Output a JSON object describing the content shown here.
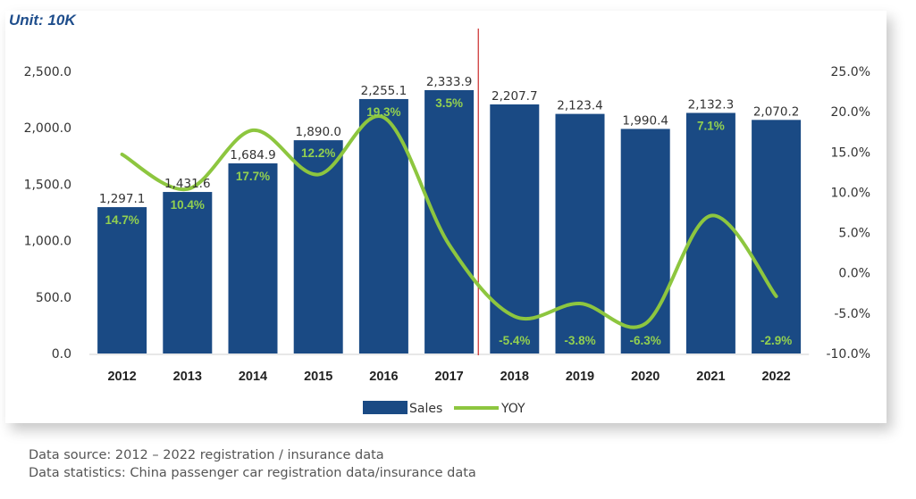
{
  "unit_label": "Unit: 10K",
  "colors": {
    "bar": "#1a4a84",
    "line": "#8dc63f",
    "divider": "#c00000",
    "frame_shadow": "#cccccc"
  },
  "left_axis_ticks": [
    "0.0",
    "500.0",
    "1,000.0",
    "1,500.0",
    "2,000.0",
    "2,500.0"
  ],
  "right_axis_ticks": [
    "-10.0%",
    "-5.0%",
    "0.0%",
    "5.0%",
    "10.0%",
    "15.0%",
    "20.0%",
    "25.0%"
  ],
  "legend": {
    "bar_label": "Sales",
    "line_label": "YOY"
  },
  "notes": {
    "source": "Data source: 2012 – 2022 registration / insurance data",
    "statistics": "Data statistics: China passenger car registration data/insurance data"
  },
  "chart_data": {
    "type": "bar",
    "categories": [
      "2012",
      "2013",
      "2014",
      "2015",
      "2016",
      "2017",
      "2018",
      "2019",
      "2020",
      "2021",
      "2022"
    ],
    "series": [
      {
        "name": "Sales",
        "type": "bar",
        "axis": "left",
        "values": [
          1297.1,
          1431.6,
          1684.9,
          1890.0,
          2255.1,
          2333.9,
          2207.7,
          2123.4,
          1990.4,
          2132.3,
          2070.2
        ],
        "labels": [
          "1,297.1",
          "1,431.6",
          "1,684.9",
          "1,890.0",
          "2,255.1",
          "2,333.9",
          "2,207.7",
          "2,123.4",
          "1,990.4",
          "2,132.3",
          "2,070.2"
        ]
      },
      {
        "name": "YOY",
        "type": "line",
        "axis": "right",
        "values": [
          14.7,
          10.4,
          17.7,
          12.2,
          19.3,
          3.5,
          -5.4,
          -3.8,
          -6.3,
          7.1,
          -2.9
        ],
        "labels": [
          "14.7%",
          "10.4%",
          "17.7%",
          "12.2%",
          "19.3%",
          "3.5%",
          "-5.4%",
          "-3.8%",
          "-6.3%",
          "7.1%",
          "-2.9%"
        ]
      }
    ],
    "left_ylim": [
      0,
      2500
    ],
    "right_ylim": [
      -10,
      25
    ],
    "legend_position": "bottom-center",
    "grid": false
  }
}
